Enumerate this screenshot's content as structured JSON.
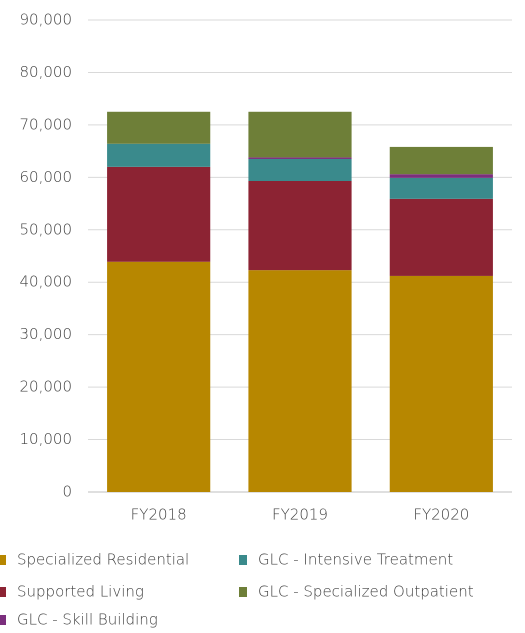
{
  "chart_data": {
    "type": "stacked_bar",
    "categories": [
      "FY2018",
      "FY2019",
      "FY2020"
    ],
    "series": [
      {
        "name": "Specialized Residential",
        "color": "#b78700",
        "values": [
          43900,
          42300,
          41200
        ]
      },
      {
        "name": "Supported Living",
        "color": "#8c2333",
        "values": [
          18100,
          17000,
          14700
        ]
      },
      {
        "name": "GLC - Intensive Treatment",
        "color": "#3a8a8c",
        "values": [
          4400,
          4200,
          4000
        ]
      },
      {
        "name": "GLC - Skill Building",
        "color": "#7b2f7d",
        "values": [
          0,
          300,
          700
        ]
      },
      {
        "name": "GLC - Specialized Outpatient",
        "color": "#6e7f38",
        "values": [
          6100,
          8700,
          5200
        ]
      }
    ],
    "ylim": [
      0,
      90000
    ],
    "yticks": [
      0,
      {
        "value": 10000,
        "label": "10,000"
      },
      {
        "value": 20000,
        "label": "20,000"
      },
      {
        "value": 30000,
        "label": "30,000"
      },
      {
        "value": 40000,
        "label": "40,000"
      },
      {
        "value": 50000,
        "label": "50,000"
      },
      {
        "value": 60000,
        "label": "60,000"
      },
      {
        "value": 70000,
        "label": "70,000"
      },
      {
        "value": 80000,
        "label": "80,000"
      },
      {
        "value": 90000,
        "label": "90,000"
      }
    ],
    "grid": true
  }
}
